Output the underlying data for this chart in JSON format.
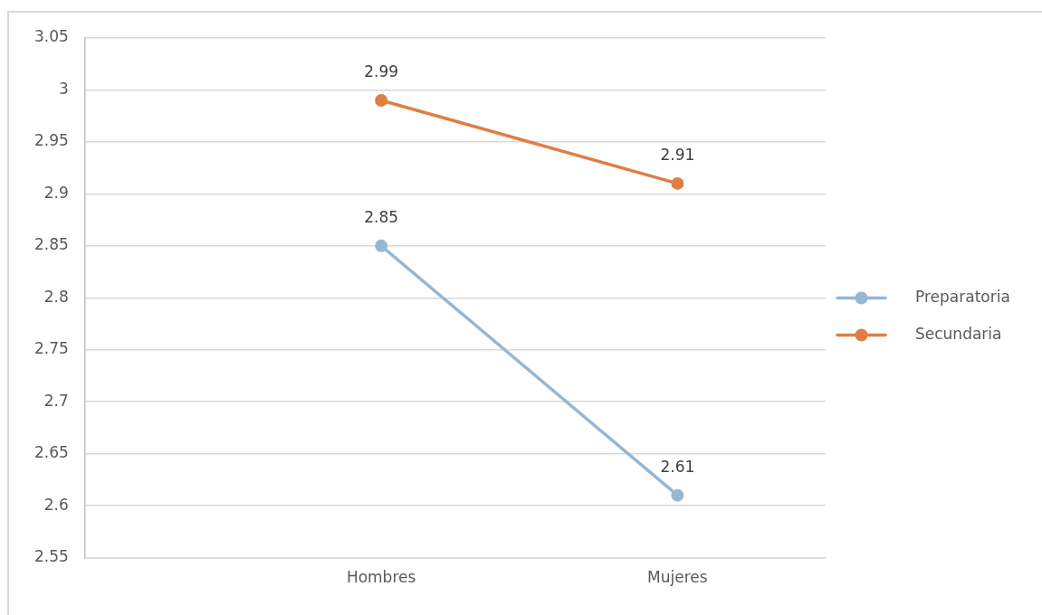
{
  "chart_data": {
    "type": "line",
    "categories": [
      "Hombres",
      "Mujeres"
    ],
    "series": [
      {
        "name": "Preparatoria",
        "color": "#95b7d4",
        "values": [
          2.85,
          2.61
        ]
      },
      {
        "name": "Secundaria",
        "color": "#e07e44",
        "values": [
          2.99,
          2.91
        ]
      }
    ],
    "ylim": [
      2.55,
      3.05
    ],
    "yticks": [
      2.55,
      2.6,
      2.65,
      2.7,
      2.75,
      2.8,
      2.85,
      2.9,
      2.95,
      3,
      3.05
    ],
    "grid": "y",
    "legend": "right",
    "marker": "circle",
    "data_labels": true
  }
}
